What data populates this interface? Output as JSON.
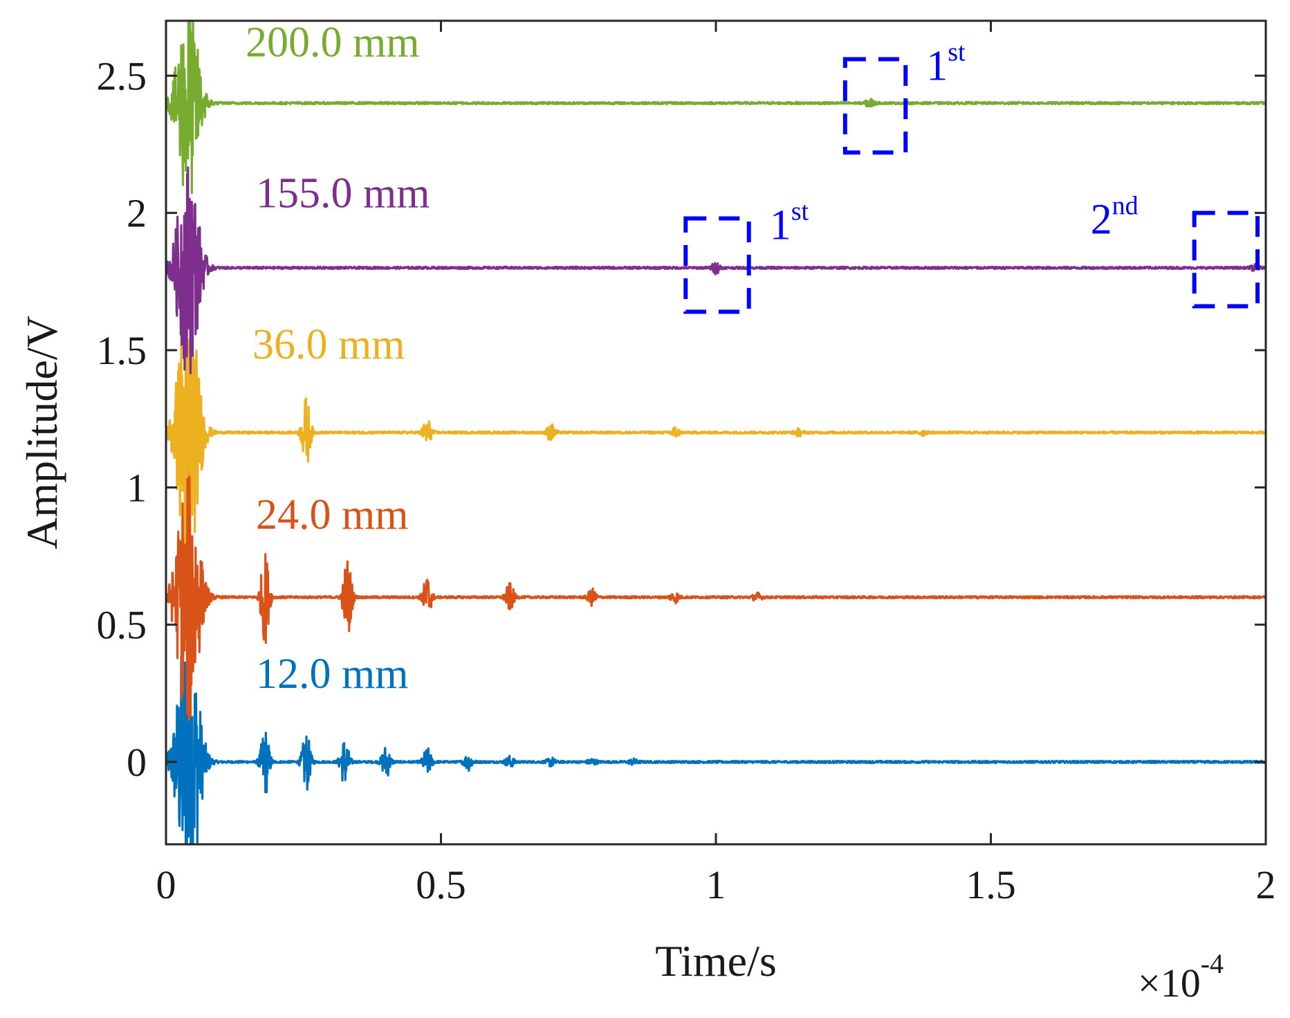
{
  "chart_data": {
    "type": "line",
    "title": "",
    "xlabel": "Time/s",
    "ylabel": "Amplitude/V",
    "x_exponent_label": {
      "base": "×10",
      "exponent": "-4"
    },
    "xlim": [
      0,
      2
    ],
    "ylim": [
      -0.3,
      2.7
    ],
    "xticks": [
      0,
      0.5,
      1,
      1.5,
      2
    ],
    "xtick_labels": [
      "0",
      "0.5",
      "1",
      "1.5",
      "2"
    ],
    "yticks": [
      0,
      0.5,
      1,
      1.5,
      2,
      2.5
    ],
    "ytick_labels": [
      "0",
      "0.5",
      "1",
      "1.5",
      "2",
      "2.5"
    ],
    "series": [
      {
        "name": "12.0 mm",
        "offset": 0.0,
        "color": "#0072BD",
        "echo_times": [
          0.18,
          0.255,
          0.325,
          0.4,
          0.475,
          0.55,
          0.625,
          0.7,
          0.775,
          0.85
        ],
        "echo_amplitudes": [
          0.13,
          0.11,
          0.09,
          0.06,
          0.05,
          0.03,
          0.02,
          0.015,
          0.012,
          0.01
        ]
      },
      {
        "name": "24.0 mm",
        "offset": 0.6,
        "color": "#D95319",
        "echo_times": [
          0.18,
          0.33,
          0.475,
          0.625,
          0.775,
          0.925,
          1.075
        ],
        "echo_amplitudes": [
          0.17,
          0.15,
          0.08,
          0.05,
          0.03,
          0.02,
          0.015
        ]
      },
      {
        "name": "36.0 mm",
        "offset": 1.2,
        "color": "#EDB120",
        "echo_times": [
          0.255,
          0.475,
          0.7,
          0.925,
          1.15,
          1.375
        ],
        "echo_amplitudes": [
          0.13,
          0.05,
          0.03,
          0.02,
          0.012,
          0.01
        ]
      },
      {
        "name": "155.0 mm",
        "offset": 1.8,
        "color": "#7E2F8E",
        "echo_times": [
          1.0,
          1.98
        ],
        "echo_amplitudes": [
          0.02,
          0.01
        ]
      },
      {
        "name": "200.0 mm",
        "offset": 2.4,
        "color": "#77AC30",
        "echo_times": [
          1.28
        ],
        "echo_amplitudes": [
          0.015
        ]
      }
    ],
    "annotations": [
      {
        "series": "200.0 mm",
        "text": "1",
        "sup": "st",
        "box_x": [
          1.235,
          1.345
        ],
        "box_y": [
          2.22,
          2.56
        ]
      },
      {
        "series": "155.0 mm",
        "text": "1",
        "sup": "st",
        "box_x": [
          0.945,
          1.06
        ],
        "box_y": [
          1.64,
          1.98
        ]
      },
      {
        "series": "155.0 mm",
        "text": "2",
        "sup": "nd",
        "box_x": [
          1.87,
          1.985
        ],
        "box_y": [
          1.66,
          2.0
        ]
      }
    ],
    "annotation_color": "#0000FF"
  }
}
